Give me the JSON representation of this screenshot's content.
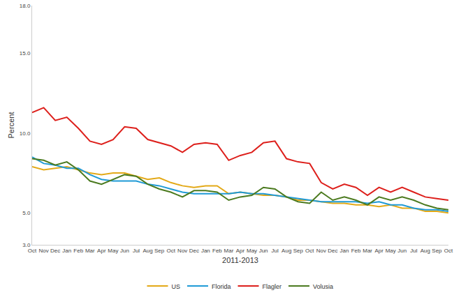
{
  "chart_data": {
    "type": "line",
    "x_label": "2011-2013",
    "y_label": "Percent",
    "categories": [
      "Oct",
      "Nov",
      "Dec",
      "Jan",
      "Feb",
      "Mar",
      "Apr",
      "May",
      "Jun",
      "Jul",
      "Aug",
      "Sep",
      "Oct",
      "Nov",
      "Dec",
      "Jan",
      "Feb",
      "Mar",
      "Apr",
      "May",
      "Jun",
      "Jul",
      "Aug",
      "Sep",
      "Oct",
      "Nov",
      "Dec",
      "Jan",
      "Feb",
      "Mar",
      "Apr",
      "May",
      "Jun",
      "Jul",
      "Aug",
      "Sep",
      "Oct"
    ],
    "series": [
      {
        "name": "US",
        "color": "#e3a917",
        "values": [
          7.9,
          7.7,
          7.8,
          7.9,
          7.7,
          7.5,
          7.4,
          7.5,
          7.5,
          7.3,
          7.1,
          7.2,
          6.9,
          6.7,
          6.6,
          6.7,
          6.7,
          6.2,
          6.3,
          6.2,
          6.1,
          6.1,
          6.0,
          5.8,
          5.8,
          5.7,
          5.6,
          5.6,
          5.5,
          5.5,
          5.4,
          5.5,
          5.3,
          5.3,
          5.1,
          5.1,
          5.0
        ]
      },
      {
        "name": "Florida",
        "color": "#1f9ad6",
        "values": [
          8.5,
          8.1,
          8.0,
          7.8,
          7.8,
          7.4,
          7.1,
          7.0,
          7.0,
          7.0,
          6.8,
          6.7,
          6.5,
          6.3,
          6.2,
          6.2,
          6.2,
          6.2,
          6.3,
          6.2,
          6.2,
          6.1,
          6.0,
          5.9,
          5.8,
          5.7,
          5.7,
          5.7,
          5.7,
          5.6,
          5.7,
          5.5,
          5.5,
          5.3,
          5.2,
          5.2,
          5.1
        ]
      },
      {
        "name": "Flagler",
        "color": "#dd1f1b",
        "values": [
          11.3,
          11.6,
          10.8,
          11.0,
          10.3,
          9.5,
          9.3,
          9.6,
          10.4,
          10.3,
          9.6,
          9.4,
          9.2,
          8.8,
          9.3,
          9.4,
          9.3,
          8.3,
          8.6,
          8.8,
          9.4,
          9.5,
          8.4,
          8.2,
          8.1,
          6.9,
          6.5,
          6.8,
          6.6,
          6.1,
          6.6,
          6.3,
          6.6,
          6.3,
          6.0,
          5.9,
          5.8
        ]
      },
      {
        "name": "Volusia",
        "color": "#4b7a1f",
        "values": [
          8.4,
          8.3,
          8.0,
          8.2,
          7.7,
          7.0,
          6.8,
          7.1,
          7.4,
          7.3,
          6.8,
          6.5,
          6.3,
          6.0,
          6.4,
          6.4,
          6.3,
          5.8,
          6.0,
          6.1,
          6.6,
          6.5,
          6.0,
          5.7,
          5.6,
          6.3,
          5.8,
          6.0,
          5.8,
          5.5,
          6.0,
          5.8,
          6.0,
          5.8,
          5.5,
          5.3,
          5.2
        ]
      }
    ],
    "ylim": [
      3,
      18
    ],
    "yticks": [
      {
        "value": 3,
        "label": "3.0"
      },
      {
        "value": 5,
        "label": "5.0"
      },
      {
        "value": 10,
        "label": "10.0"
      },
      {
        "value": 15,
        "label": "15.0"
      },
      {
        "value": 18,
        "label": "18.0"
      }
    ],
    "grid": false,
    "legend": "bottom"
  }
}
